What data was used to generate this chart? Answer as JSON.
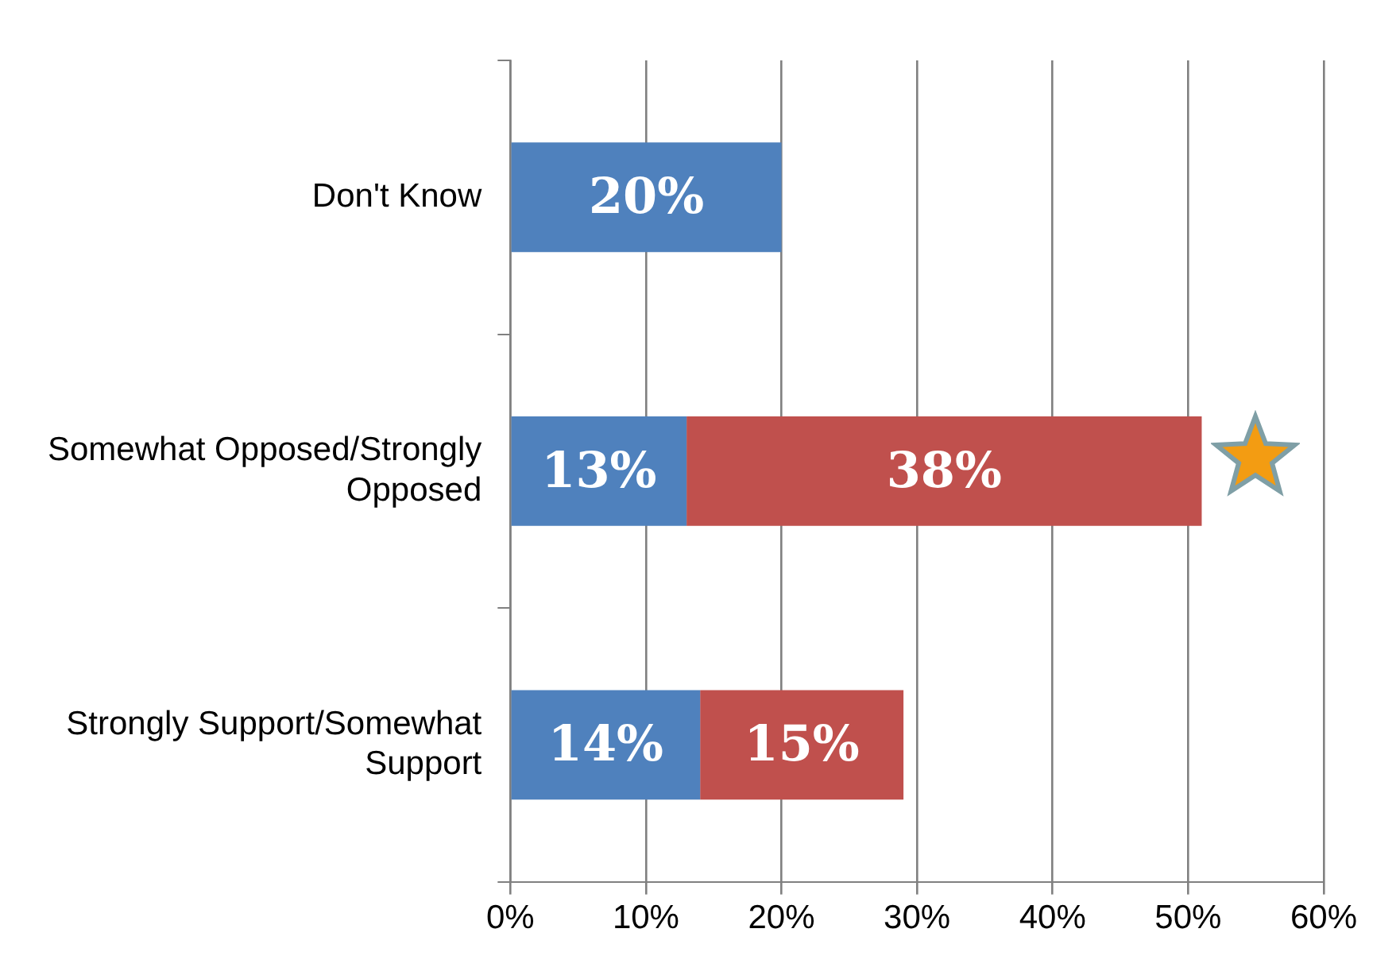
{
  "chart_data": {
    "type": "bar",
    "orientation": "horizontal",
    "stacked": true,
    "categories": [
      "Don't Know",
      "Somewhat Opposed/Strongly Opposed",
      "Strongly Support/Somewhat Support"
    ],
    "series": [
      {
        "color": "#4f81bd",
        "values": [
          20,
          13,
          14
        ],
        "value_labels": [
          "20%",
          "13%",
          "14%"
        ]
      },
      {
        "color": "#c0504d",
        "values": [
          null,
          38,
          15
        ],
        "value_labels": [
          null,
          "38%",
          "15%"
        ]
      }
    ],
    "xlim": [
      0,
      60
    ],
    "xticks": [
      {
        "value": 0,
        "label": "0%"
      },
      {
        "value": 10,
        "label": "10%"
      },
      {
        "value": 20,
        "label": "20%"
      },
      {
        "value": 30,
        "label": "30%"
      },
      {
        "value": 40,
        "label": "40%"
      },
      {
        "value": 50,
        "label": "50%"
      },
      {
        "value": 60,
        "label": "60%"
      }
    ],
    "grid": "x",
    "legend": false
  }
}
